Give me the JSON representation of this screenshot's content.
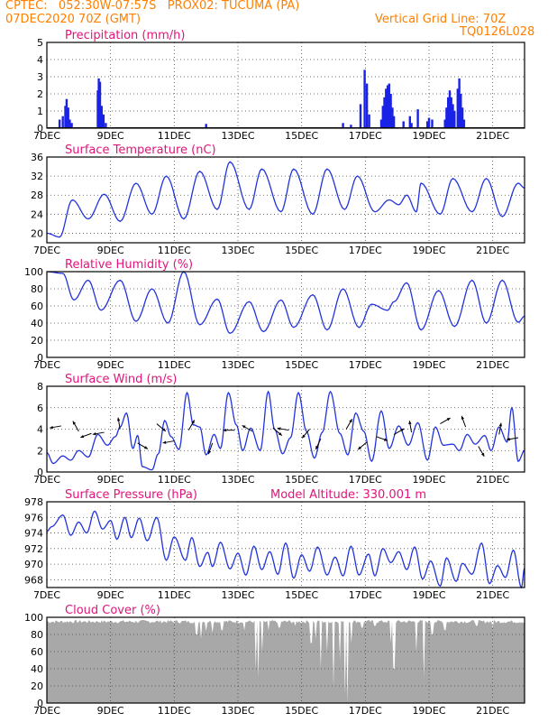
{
  "header": {
    "line1": "CPTEC:   052:30W-07:57S   PROX02: TUCUMA (PA)",
    "line2": "07DEC2020 70Z (GMT)",
    "grid_note": "Vertical Grid Line: 70Z",
    "code": "TQ0126L028"
  },
  "colors": {
    "header": "#ff7f00",
    "title": "#e0157a",
    "series": "#2233dd",
    "bars": "#1a22e6",
    "cloud": "#a8a8a8"
  },
  "chart_data": [
    {
      "type": "bar",
      "title": "Precipitation (mm/h)",
      "ylim": [
        0,
        5
      ],
      "yticks": [
        "0",
        "1",
        "2",
        "3",
        "4",
        "5"
      ],
      "xticks": [
        "7DEC",
        "9DEC",
        "11DEC",
        "13DEC",
        "15DEC",
        "17DEC",
        "19DEC",
        "21DEC"
      ],
      "x_start": "2020-12-07",
      "x_end": "2020-12-22",
      "events": [
        {
          "day": 0.4,
          "value": 0.5
        },
        {
          "day": 0.5,
          "value": 0.7
        },
        {
          "day": 0.58,
          "value": 1.3
        },
        {
          "day": 0.62,
          "value": 1.7
        },
        {
          "day": 0.67,
          "value": 1.2
        },
        {
          "day": 0.72,
          "value": 0.5
        },
        {
          "day": 0.78,
          "value": 0.3
        },
        {
          "day": 1.6,
          "value": 2.2
        },
        {
          "day": 1.63,
          "value": 2.9
        },
        {
          "day": 1.67,
          "value": 2.7
        },
        {
          "day": 1.72,
          "value": 1.3
        },
        {
          "day": 1.78,
          "value": 0.8
        },
        {
          "day": 1.85,
          "value": 0.3
        },
        {
          "day": 5.0,
          "value": 0.25
        },
        {
          "day": 9.3,
          "value": 0.3
        },
        {
          "day": 9.55,
          "value": 0.2
        },
        {
          "day": 9.85,
          "value": 1.4
        },
        {
          "day": 9.98,
          "value": 3.4
        },
        {
          "day": 10.05,
          "value": 2.6
        },
        {
          "day": 10.12,
          "value": 0.8
        },
        {
          "day": 10.5,
          "value": 0.5
        },
        {
          "day": 10.55,
          "value": 1.3
        },
        {
          "day": 10.6,
          "value": 1.8
        },
        {
          "day": 10.65,
          "value": 2.3
        },
        {
          "day": 10.7,
          "value": 2.5
        },
        {
          "day": 10.75,
          "value": 2.6
        },
        {
          "day": 10.8,
          "value": 2.0
        },
        {
          "day": 10.85,
          "value": 1.2
        },
        {
          "day": 10.9,
          "value": 0.7
        },
        {
          "day": 11.2,
          "value": 0.4
        },
        {
          "day": 11.4,
          "value": 0.7
        },
        {
          "day": 11.45,
          "value": 0.3
        },
        {
          "day": 11.65,
          "value": 1.1
        },
        {
          "day": 11.95,
          "value": 0.4
        },
        {
          "day": 12.0,
          "value": 0.6
        },
        {
          "day": 12.1,
          "value": 0.5
        },
        {
          "day": 12.5,
          "value": 0.5
        },
        {
          "day": 12.55,
          "value": 1.2
        },
        {
          "day": 12.6,
          "value": 1.8
        },
        {
          "day": 12.65,
          "value": 2.2
        },
        {
          "day": 12.7,
          "value": 1.8
        },
        {
          "day": 12.75,
          "value": 1.4
        },
        {
          "day": 12.8,
          "value": 1.0
        },
        {
          "day": 12.9,
          "value": 2.3
        },
        {
          "day": 12.95,
          "value": 2.9
        },
        {
          "day": 13.0,
          "value": 2.0
        },
        {
          "day": 13.05,
          "value": 1.2
        },
        {
          "day": 13.1,
          "value": 0.5
        }
      ]
    },
    {
      "type": "line",
      "title": "Surface Temperature (nC)",
      "ylim": [
        18,
        36
      ],
      "yticks": [
        "20",
        "24",
        "28",
        "32",
        "36"
      ],
      "xticks": [
        "7DEC",
        "9DEC",
        "11DEC",
        "13DEC",
        "15DEC",
        "17DEC",
        "19DEC",
        "21DEC"
      ],
      "x_start": "2020-12-07",
      "x_end": "2020-12-22",
      "extrema": [
        [
          0,
          20
        ],
        [
          0.4,
          19.2
        ],
        [
          0.8,
          27
        ],
        [
          1.3,
          23
        ],
        [
          1.8,
          28.2
        ],
        [
          2.3,
          22.5
        ],
        [
          2.8,
          30.5
        ],
        [
          3.3,
          24
        ],
        [
          3.75,
          32
        ],
        [
          4.3,
          23
        ],
        [
          4.8,
          33
        ],
        [
          5.35,
          25
        ],
        [
          5.75,
          35
        ],
        [
          6.35,
          25
        ],
        [
          6.75,
          33.5
        ],
        [
          7.35,
          24.5
        ],
        [
          7.75,
          33.5
        ],
        [
          8.35,
          24
        ],
        [
          8.8,
          33.5
        ],
        [
          9.35,
          25
        ],
        [
          9.75,
          32
        ],
        [
          10.3,
          24.5
        ],
        [
          10.75,
          27
        ],
        [
          11.05,
          26
        ],
        [
          11.3,
          28
        ],
        [
          11.6,
          24.5
        ],
        [
          11.75,
          30.5
        ],
        [
          12.35,
          24
        ],
        [
          12.75,
          31.5
        ],
        [
          13.35,
          24.5
        ],
        [
          13.8,
          31.5
        ],
        [
          14.3,
          23.5
        ],
        [
          14.8,
          30.5
        ],
        [
          15,
          29.5
        ]
      ]
    },
    {
      "type": "line",
      "title": "Relative Humidity (%)",
      "ylim": [
        0,
        100
      ],
      "yticks": [
        "0",
        "20",
        "40",
        "60",
        "80",
        "100"
      ],
      "xticks": [
        "7DEC",
        "9DEC",
        "11DEC",
        "13DEC",
        "15DEC",
        "17DEC",
        "19DEC",
        "21DEC"
      ],
      "x_start": "2020-12-07",
      "x_end": "2020-12-22",
      "extrema": [
        [
          0,
          100
        ],
        [
          0.5,
          98
        ],
        [
          0.85,
          67
        ],
        [
          1.3,
          90
        ],
        [
          1.7,
          55
        ],
        [
          2.3,
          90
        ],
        [
          2.8,
          42
        ],
        [
          3.3,
          80
        ],
        [
          3.8,
          40
        ],
        [
          4.3,
          100
        ],
        [
          4.8,
          38
        ],
        [
          5.35,
          68
        ],
        [
          5.75,
          28
        ],
        [
          6.35,
          65
        ],
        [
          6.8,
          30
        ],
        [
          7.35,
          67
        ],
        [
          7.75,
          35
        ],
        [
          8.35,
          73
        ],
        [
          8.8,
          32
        ],
        [
          9.3,
          80
        ],
        [
          9.8,
          35
        ],
        [
          10.2,
          62
        ],
        [
          10.7,
          55
        ],
        [
          10.9,
          65
        ],
        [
          11.3,
          87
        ],
        [
          11.75,
          32
        ],
        [
          12.3,
          78
        ],
        [
          12.8,
          36
        ],
        [
          13.35,
          90
        ],
        [
          13.8,
          40
        ],
        [
          14.3,
          90
        ],
        [
          14.8,
          41
        ],
        [
          15,
          48
        ]
      ]
    },
    {
      "type": "line",
      "title": "Surface Wind (m/s)",
      "ylim": [
        0,
        8
      ],
      "yticks": [
        "0",
        "2",
        "4",
        "6",
        "8"
      ],
      "xticks": [
        "7DEC",
        "9DEC",
        "11DEC",
        "13DEC",
        "15DEC",
        "17DEC",
        "19DEC",
        "21DEC"
      ],
      "x_start": "2020-12-07",
      "x_end": "2020-12-22",
      "extrema": [
        [
          0,
          1.8
        ],
        [
          0.2,
          0.8
        ],
        [
          0.5,
          1.5
        ],
        [
          0.75,
          1.1
        ],
        [
          1.0,
          2.0
        ],
        [
          1.3,
          1.4
        ],
        [
          1.6,
          3.5
        ],
        [
          1.9,
          2.5
        ],
        [
          2.15,
          3.3
        ],
        [
          2.3,
          4.2
        ],
        [
          2.5,
          5.5
        ],
        [
          2.7,
          2.2
        ],
        [
          2.85,
          3.4
        ],
        [
          3.0,
          0.5
        ],
        [
          3.3,
          0.2
        ],
        [
          3.5,
          1.7
        ],
        [
          3.7,
          4.8
        ],
        [
          3.9,
          3.3
        ],
        [
          4.15,
          2.1
        ],
        [
          4.4,
          7.4
        ],
        [
          4.6,
          4.4
        ],
        [
          4.8,
          4.2
        ],
        [
          5.0,
          1.6
        ],
        [
          5.25,
          3.5
        ],
        [
          5.45,
          2.2
        ],
        [
          5.7,
          7.4
        ],
        [
          5.95,
          4.4
        ],
        [
          6.15,
          2.0
        ],
        [
          6.4,
          4.1
        ],
        [
          6.7,
          2.0
        ],
        [
          6.95,
          7.5
        ],
        [
          7.15,
          4.0
        ],
        [
          7.4,
          1.7
        ],
        [
          7.65,
          3.2
        ],
        [
          7.9,
          7.4
        ],
        [
          8.15,
          3.8
        ],
        [
          8.4,
          1.3
        ],
        [
          8.65,
          3.7
        ],
        [
          8.9,
          7.5
        ],
        [
          9.2,
          3.6
        ],
        [
          9.45,
          1.6
        ],
        [
          9.7,
          5.5
        ],
        [
          9.95,
          3.8
        ],
        [
          10.2,
          1.0
        ],
        [
          10.5,
          5.7
        ],
        [
          10.75,
          2.2
        ],
        [
          11.05,
          4.3
        ],
        [
          11.35,
          2.5
        ],
        [
          11.65,
          4.6
        ],
        [
          11.95,
          1.1
        ],
        [
          12.2,
          4.2
        ],
        [
          12.45,
          2.5
        ],
        [
          12.75,
          2.6
        ],
        [
          12.95,
          2.0
        ],
        [
          13.2,
          3.5
        ],
        [
          13.45,
          2.6
        ],
        [
          13.75,
          3.4
        ],
        [
          13.95,
          2.0
        ],
        [
          14.2,
          4.2
        ],
        [
          14.45,
          2.8
        ],
        [
          14.6,
          6.0
        ],
        [
          14.8,
          1.0
        ],
        [
          15,
          2.0
        ]
      ],
      "vectors": [
        [
          0.45,
          4.3,
          190
        ],
        [
          1.0,
          3.8,
          120
        ],
        [
          1.4,
          3.6,
          200
        ],
        [
          1.8,
          3.7,
          190
        ],
        [
          2.3,
          4.0,
          100
        ],
        [
          2.85,
          2.7,
          330
        ],
        [
          3.45,
          4.5,
          320
        ],
        [
          4.0,
          2.9,
          190
        ],
        [
          4.45,
          3.9,
          60
        ],
        [
          5.2,
          2.7,
          250
        ],
        [
          5.9,
          3.9,
          180
        ],
        [
          6.45,
          3.8,
          150
        ],
        [
          7.1,
          4.1,
          320
        ],
        [
          7.6,
          3.9,
          170
        ],
        [
          8.25,
          4.0,
          230
        ],
        [
          8.6,
          3.1,
          245
        ],
        [
          9.4,
          4.0,
          60
        ],
        [
          10.05,
          2.8,
          220
        ],
        [
          10.35,
          3.3,
          340
        ],
        [
          10.9,
          3.5,
          30
        ],
        [
          11.45,
          3.7,
          100
        ],
        [
          12.35,
          4.5,
          30
        ],
        [
          13.15,
          4.2,
          110
        ],
        [
          13.55,
          2.4,
          300
        ],
        [
          14.2,
          3.5,
          80
        ],
        [
          14.8,
          3.2,
          190
        ]
      ]
    },
    {
      "type": "line",
      "title": "Surface Pressure (hPa)",
      "ylim": [
        967,
        978
      ],
      "yticks": [
        "968",
        "970",
        "972",
        "974",
        "976",
        "978"
      ],
      "xticks": [
        "7DEC",
        "9DEC",
        "11DEC",
        "13DEC",
        "15DEC",
        "17DEC",
        "19DEC",
        "21DEC"
      ],
      "x_start": "2020-12-07",
      "x_end": "2020-12-22",
      "annotation": "Model Altitude:  330.001  m",
      "extrema": [
        [
          0,
          974.2
        ],
        [
          0.15,
          974.8
        ],
        [
          0.5,
          976.3
        ],
        [
          0.75,
          973.7
        ],
        [
          1.0,
          975.4
        ],
        [
          1.25,
          974.0
        ],
        [
          1.5,
          976.8
        ],
        [
          1.75,
          974.5
        ],
        [
          2.0,
          975.6
        ],
        [
          2.2,
          973.2
        ],
        [
          2.45,
          976.0
        ],
        [
          2.65,
          973.4
        ],
        [
          2.9,
          975.9
        ],
        [
          3.15,
          973.0
        ],
        [
          3.45,
          976.0
        ],
        [
          3.75,
          970.5
        ],
        [
          4.0,
          973.5
        ],
        [
          4.35,
          970.5
        ],
        [
          4.55,
          973.4
        ],
        [
          4.8,
          969.7
        ],
        [
          5.05,
          971.5
        ],
        [
          5.2,
          969.7
        ],
        [
          5.45,
          972.8
        ],
        [
          5.75,
          969.4
        ],
        [
          6.0,
          971.4
        ],
        [
          6.25,
          968.6
        ],
        [
          6.5,
          972.3
        ],
        [
          6.75,
          969.3
        ],
        [
          7.0,
          971.6
        ],
        [
          7.25,
          968.7
        ],
        [
          7.5,
          972.7
        ],
        [
          7.75,
          968.2
        ],
        [
          8.0,
          971.2
        ],
        [
          8.25,
          969.1
        ],
        [
          8.5,
          972.2
        ],
        [
          8.8,
          968.6
        ],
        [
          9.05,
          970.9
        ],
        [
          9.3,
          968.5
        ],
        [
          9.55,
          972.3
        ],
        [
          9.8,
          968.6
        ],
        [
          10.1,
          971.3
        ],
        [
          10.3,
          968.5
        ],
        [
          10.55,
          972.0
        ],
        [
          10.8,
          970.2
        ],
        [
          11.05,
          971.6
        ],
        [
          11.3,
          969.3
        ],
        [
          11.55,
          972.2
        ],
        [
          11.8,
          968.1
        ],
        [
          12.05,
          970.4
        ],
        [
          12.35,
          967.2
        ],
        [
          12.55,
          970.8
        ],
        [
          12.85,
          967.8
        ],
        [
          13.05,
          970.1
        ],
        [
          13.35,
          968.7
        ],
        [
          13.65,
          972.7
        ],
        [
          13.9,
          967.5
        ],
        [
          14.15,
          969.8
        ],
        [
          14.4,
          968.3
        ],
        [
          14.65,
          971.8
        ],
        [
          14.9,
          967.0
        ],
        [
          15,
          969.5
        ]
      ]
    },
    {
      "type": "area",
      "title": "Cloud Cover (%)",
      "ylim": [
        0,
        100
      ],
      "yticks": [
        "0",
        "20",
        "40",
        "60",
        "80",
        "100"
      ],
      "xticks": [
        "7DEC",
        "9DEC",
        "11DEC",
        "13DEC",
        "15DEC",
        "17DEC",
        "19DEC",
        "21DEC"
      ],
      "x_start": "2020-12-07",
      "x_end": "2020-12-22",
      "base_level": 95,
      "dips": [
        [
          4.7,
          80
        ],
        [
          4.85,
          75
        ],
        [
          5.0,
          84
        ],
        [
          5.2,
          82
        ],
        [
          5.5,
          85
        ],
        [
          6.2,
          85
        ],
        [
          6.55,
          40
        ],
        [
          6.65,
          30
        ],
        [
          6.75,
          60
        ],
        [
          6.95,
          85
        ],
        [
          7.3,
          88
        ],
        [
          7.8,
          90
        ],
        [
          8.3,
          70
        ],
        [
          8.45,
          75
        ],
        [
          8.6,
          40
        ],
        [
          8.8,
          60
        ],
        [
          9.0,
          20
        ],
        [
          9.2,
          50
        ],
        [
          9.35,
          10
        ],
        [
          9.45,
          0
        ],
        [
          9.55,
          70
        ],
        [
          9.9,
          88
        ],
        [
          10.3,
          90
        ],
        [
          10.8,
          70
        ],
        [
          10.9,
          40
        ],
        [
          11.6,
          60
        ],
        [
          11.85,
          30
        ],
        [
          12.1,
          80
        ],
        [
          12.5,
          85
        ],
        [
          13.5,
          90
        ],
        [
          14.0,
          88
        ]
      ]
    }
  ]
}
